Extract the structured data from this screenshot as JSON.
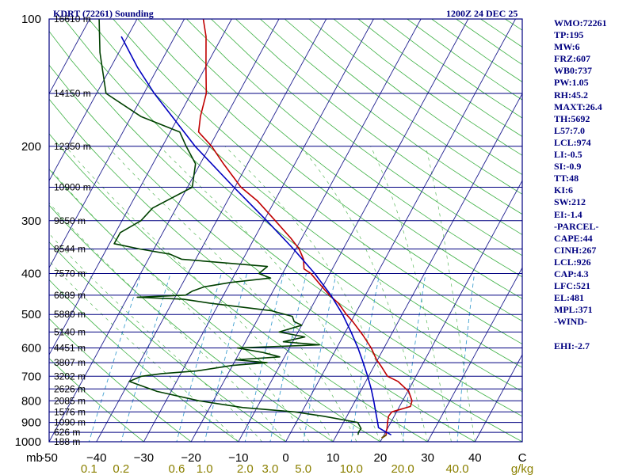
{
  "header": {
    "station": "KDRT (72261) Sounding",
    "time": "1200Z 24 DEC 25"
  },
  "indices": [
    "WMO:72261",
    "TP:195",
    "MW:6",
    "FRZ:607",
    "WB0:737",
    "PW:1.05",
    "RH:45.2",
    "MAXT:26.4",
    "TH:5692",
    "L57:7.0",
    "LCL:974",
    "LI:-0.5",
    "SI:-0.9",
    "TT:48",
    "KI:6",
    "SW:212",
    "EI:-1.4",
    "-PARCEL-",
    "CAPE:44",
    "CINH:267",
    "LCL:926",
    "CAP:4.3",
    "LFC:521",
    "EL:481",
    "MPL:371",
    "-WIND-",
    "",
    "EHI:-2.7"
  ],
  "colors": {
    "frame": "#000080",
    "isobar": "#000080",
    "isotherm": "#1f1f8f",
    "dry_adiabat": "#3cb043",
    "moist_adiabat": "#5ab85a",
    "mixing_ratio": "#40a0d0",
    "temperature": "#c00000",
    "dewpoint": "#004000",
    "parcel": "#0000c0"
  },
  "chart_data": {
    "type": "skew-t",
    "title": "KDRT (72261) Sounding",
    "valid_time": "1200Z 24 DEC 25",
    "pressure_range_mb": [
      1000,
      100
    ],
    "temperature_range_c": [
      -50,
      50
    ],
    "pressure_ticks": [
      100,
      200,
      300,
      400,
      500,
      600,
      700,
      800,
      900,
      1000
    ],
    "temperature_ticks": [
      -50,
      -40,
      -30,
      -20,
      -10,
      0,
      10,
      20,
      30,
      40,
      50
    ],
    "temperature_tick_labels": [
      "-50",
      "−40",
      "−30",
      "−20",
      "−10",
      "0",
      "10",
      "20",
      "30",
      "40",
      "C"
    ],
    "pressure_axis_label": "mb",
    "mixing_ratio_labels": [
      "0.1",
      "0.2",
      "0.6",
      "1.0",
      "2.0",
      "3.0",
      "5.0",
      "10.0",
      "20.0",
      "40.0",
      "g/kg"
    ],
    "mixing_ratio_values": [
      0.1,
      0.2,
      0.6,
      1.0,
      2.0,
      3.0,
      5.0,
      10.0,
      20.0,
      40.0
    ],
    "height_labels": [
      {
        "p": 100,
        "label": "16610 m"
      },
      {
        "p": 150,
        "label": "14150 m"
      },
      {
        "p": 200,
        "label": "12350 m"
      },
      {
        "p": 250,
        "label": "10900 m"
      },
      {
        "p": 300,
        "label": "9650 m"
      },
      {
        "p": 350,
        "label": "8544 m"
      },
      {
        "p": 400,
        "label": "7570 m"
      },
      {
        "p": 450,
        "label": "6689 m"
      },
      {
        "p": 500,
        "label": "5880 m"
      },
      {
        "p": 550,
        "label": "5140 m"
      },
      {
        "p": 600,
        "label": "4451 m"
      },
      {
        "p": 650,
        "label": "3807 m"
      },
      {
        "p": 700,
        "label": "3202 m"
      },
      {
        "p": 750,
        "label": "2626 m"
      },
      {
        "p": 800,
        "label": "2085 m"
      },
      {
        "p": 850,
        "label": "1576 m"
      },
      {
        "p": 900,
        "label": "1090 m"
      },
      {
        "p": 950,
        "label": "626 m"
      },
      {
        "p": 1000,
        "label": "188 m"
      }
    ],
    "series": [
      {
        "name": "Temperature",
        "values": [
          [
            963,
            20.5
          ],
          [
            950,
            20.1
          ],
          [
            930,
            19.9
          ],
          [
            900,
            19.3
          ],
          [
            870,
            18.8
          ],
          [
            850,
            19.0
          ],
          [
            825,
            22.3
          ],
          [
            800,
            22.0
          ],
          [
            760,
            20.2
          ],
          [
            720,
            16.8
          ],
          [
            700,
            14.0
          ],
          [
            660,
            11.3
          ],
          [
            640,
            9.8
          ],
          [
            600,
            7.3
          ],
          [
            560,
            4.1
          ],
          [
            520,
            0.4
          ],
          [
            500,
            -1.8
          ],
          [
            470,
            -4.8
          ],
          [
            450,
            -7.6
          ],
          [
            420,
            -11.4
          ],
          [
            400,
            -14.0
          ],
          [
            390,
            -16.0
          ],
          [
            370,
            -17.2
          ],
          [
            350,
            -19.3
          ],
          [
            330,
            -22.3
          ],
          [
            300,
            -27.6
          ],
          [
            270,
            -33.5
          ],
          [
            250,
            -38.7
          ],
          [
            220,
            -45.1
          ],
          [
            200,
            -49.6
          ],
          [
            185,
            -54.0
          ],
          [
            170,
            -55.4
          ],
          [
            150,
            -56.8
          ],
          [
            130,
            -59.9
          ],
          [
            110,
            -63.4
          ],
          [
            100,
            -66.0
          ]
        ]
      },
      {
        "name": "Dewpoint",
        "values": [
          [
            963,
            14.5
          ],
          [
            950,
            14.3
          ],
          [
            930,
            14.4
          ],
          [
            900,
            13.0
          ],
          [
            870,
            5.0
          ],
          [
            850,
            -1.5
          ],
          [
            830,
            -13.0
          ],
          [
            800,
            -23.0
          ],
          [
            760,
            -33.0
          ],
          [
            720,
            -40.0
          ],
          [
            700,
            -38.0
          ],
          [
            690,
            -34.0
          ],
          [
            680,
            -27.0
          ],
          [
            660,
            -20.0
          ],
          [
            650,
            -13.0
          ],
          [
            640,
            -20.0
          ],
          [
            630,
            -11.0
          ],
          [
            615,
            -15.0
          ],
          [
            600,
            -21.0
          ],
          [
            590,
            -4.0
          ],
          [
            580,
            -12.0
          ],
          [
            565,
            -8.0
          ],
          [
            550,
            -14.0
          ],
          [
            530,
            -10.0
          ],
          [
            520,
            -12.0
          ],
          [
            505,
            -13.0
          ],
          [
            490,
            -18.0
          ],
          [
            470,
            -32.0
          ],
          [
            460,
            -38.0
          ],
          [
            455,
            -48.0
          ],
          [
            450,
            -38.0
          ],
          [
            440,
            -37.0
          ],
          [
            430,
            -35.0
          ],
          [
            420,
            -30.0
          ],
          [
            410,
            -22.0
          ],
          [
            400,
            -25.0
          ],
          [
            385,
            -24.0
          ],
          [
            370,
            -43.0
          ],
          [
            360,
            -46.0
          ],
          [
            350,
            -53.0
          ],
          [
            340,
            -59.0
          ],
          [
            320,
            -59.0
          ],
          [
            300,
            -56.0
          ],
          [
            280,
            -55.0
          ],
          [
            250,
            -49.0
          ],
          [
            220,
            -51.0
          ],
          [
            200,
            -55.0
          ],
          [
            185,
            -58.0
          ],
          [
            170,
            -68.0
          ],
          [
            150,
            -78.0
          ],
          [
            120,
            -84.0
          ],
          [
            100,
            -88.0
          ]
        ]
      },
      {
        "name": "Parcel",
        "values": [
          [
            963,
            21.5
          ],
          [
            940,
            19.3
          ],
          [
            926,
            18.0
          ],
          [
            900,
            17.2
          ],
          [
            850,
            15.6
          ],
          [
            800,
            13.9
          ],
          [
            750,
            12.0
          ],
          [
            700,
            9.8
          ],
          [
            650,
            7.3
          ],
          [
            600,
            4.5
          ],
          [
            550,
            1.2
          ],
          [
            500,
            -2.6
          ],
          [
            450,
            -7.3
          ],
          [
            400,
            -13.2
          ],
          [
            350,
            -20.5
          ],
          [
            300,
            -29.4
          ],
          [
            250,
            -40.2
          ],
          [
            200,
            -53.1
          ],
          [
            150,
            -67.8
          ],
          [
            130,
            -74.4
          ],
          [
            110,
            -81.3
          ]
        ]
      }
    ]
  }
}
